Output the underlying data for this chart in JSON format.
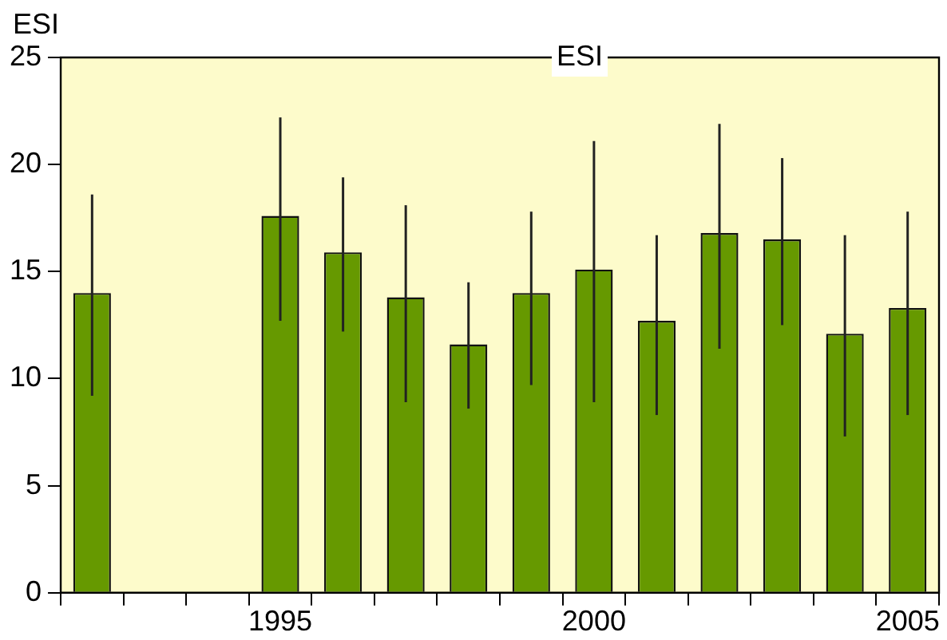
{
  "chart_data": {
    "type": "bar",
    "title": "ESI",
    "ylabel": "ESI",
    "categories": [
      null,
      null,
      null,
      "1995",
      null,
      null,
      null,
      null,
      "2000",
      null,
      null,
      null,
      null,
      "2005"
    ],
    "values": [
      14.0,
      null,
      null,
      17.6,
      15.9,
      13.8,
      11.6,
      14.0,
      15.1,
      12.7,
      16.8,
      16.5,
      12.1,
      13.3
    ],
    "errors": [
      [
        9.2,
        18.6
      ],
      null,
      null,
      [
        12.7,
        22.2
      ],
      [
        12.2,
        19.4
      ],
      [
        8.9,
        18.1
      ],
      [
        8.6,
        14.5
      ],
      [
        9.7,
        17.8
      ],
      [
        8.9,
        21.1
      ],
      [
        8.3,
        16.7
      ],
      [
        11.4,
        21.9
      ],
      [
        12.5,
        20.3
      ],
      [
        7.3,
        16.7
      ],
      [
        8.3,
        17.8
      ]
    ],
    "color": "#669900",
    "ylim": [
      0,
      25
    ],
    "yticks": [
      0,
      5,
      10,
      15,
      20,
      25
    ],
    "grid": false,
    "legend": false
  }
}
